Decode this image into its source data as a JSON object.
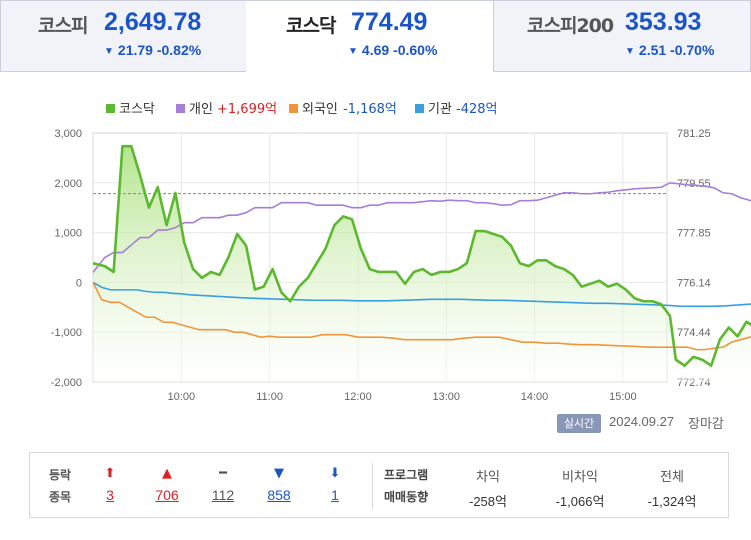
{
  "tabs": [
    {
      "name": "코스피",
      "value": "2,649.78",
      "change": "21.79 -0.82%",
      "direction": "down"
    },
    {
      "name": "코스닥",
      "value": "774.49",
      "change": "4.69 -0.60%",
      "direction": "down"
    },
    {
      "name": "코스피200",
      "value": "353.93",
      "change": "2.51 -0.70%",
      "direction": "down"
    }
  ],
  "legend": [
    {
      "label": "코스닥",
      "value": "",
      "color": "#5cb82e",
      "value_color": "#5cb82e"
    },
    {
      "label": "개인",
      "value": "+1,699억",
      "color": "#a77ed6",
      "value_color": "#e02020"
    },
    {
      "label": "외국인",
      "value": "-1,168억",
      "color": "#f0953a",
      "value_color": "#1b55c8"
    },
    {
      "label": "기관",
      "value": "-428억",
      "color": "#3a9ee0",
      "value_color": "#1b55c8"
    }
  ],
  "status": {
    "realtime": "실시간",
    "date": "2024.09.27",
    "closed": "장마감"
  },
  "stats": {
    "label1": "등락",
    "label2": "종목",
    "counts": [
      {
        "icon": "⬆",
        "value": "3",
        "kind": "limit-up"
      },
      {
        "icon": "▲",
        "value": "706",
        "kind": "up"
      },
      {
        "icon": "━",
        "value": "112",
        "kind": "flat"
      },
      {
        "icon": "▼",
        "value": "858",
        "kind": "down"
      },
      {
        "icon": "⬇",
        "value": "1",
        "kind": "limit-down"
      }
    ],
    "program_label1": "프로그램",
    "program_label2": "매매동향",
    "program": [
      {
        "header": "차익",
        "value": "-258억"
      },
      {
        "header": "비차익",
        "value": "-1,066억"
      },
      {
        "header": "전체",
        "value": "-1,324억"
      }
    ]
  },
  "chart_data": {
    "type": "line",
    "x_labels": [
      "10:00",
      "11:00",
      "12:00",
      "13:00",
      "14:00",
      "15:00"
    ],
    "x_range": [
      "09:00",
      "15:30"
    ],
    "y_left": {
      "ticks": [
        "3,000",
        "2,000",
        "1,000",
        "0",
        "-1,000",
        "-2,000"
      ],
      "range": [
        -2000,
        3000
      ]
    },
    "y_right": {
      "ticks": [
        "781.25",
        "779.55",
        "777.85",
        "776.14",
        "774.44",
        "772.74"
      ],
      "range": [
        772.74,
        781.25
      ]
    },
    "prev_close": 779.18,
    "grid": true,
    "series": [
      {
        "name": "코스닥",
        "axis": "right",
        "color": "#5cb82e",
        "area": true,
        "points": [
          [
            0,
            776.8
          ],
          [
            8,
            776.7
          ],
          [
            14,
            776.5
          ],
          [
            20,
            780.8
          ],
          [
            26,
            780.8
          ],
          [
            32,
            779.8
          ],
          [
            38,
            778.7
          ],
          [
            44,
            779.4
          ],
          [
            50,
            778.1
          ],
          [
            56,
            779.2
          ],
          [
            62,
            777.5
          ],
          [
            68,
            776.6
          ],
          [
            74,
            776.3
          ],
          [
            80,
            776.5
          ],
          [
            86,
            776.4
          ],
          [
            92,
            777.0
          ],
          [
            98,
            777.8
          ],
          [
            104,
            777.4
          ],
          [
            110,
            775.9
          ],
          [
            116,
            776.0
          ],
          [
            122,
            776.6
          ],
          [
            128,
            775.8
          ],
          [
            134,
            775.5
          ],
          [
            140,
            776.0
          ],
          [
            146,
            776.3
          ],
          [
            152,
            776.8
          ],
          [
            158,
            777.3
          ],
          [
            164,
            778.1
          ],
          [
            170,
            778.4
          ],
          [
            176,
            778.3
          ],
          [
            182,
            777.3
          ],
          [
            188,
            776.6
          ],
          [
            194,
            776.5
          ],
          [
            200,
            776.5
          ],
          [
            206,
            776.5
          ],
          [
            212,
            776.1
          ],
          [
            218,
            776.5
          ],
          [
            224,
            776.6
          ],
          [
            230,
            776.4
          ],
          [
            236,
            776.5
          ],
          [
            242,
            776.5
          ],
          [
            248,
            776.6
          ],
          [
            254,
            776.8
          ],
          [
            260,
            777.9
          ],
          [
            266,
            777.9
          ],
          [
            272,
            777.8
          ],
          [
            278,
            777.7
          ],
          [
            284,
            777.4
          ],
          [
            290,
            776.8
          ],
          [
            296,
            776.7
          ],
          [
            302,
            776.9
          ],
          [
            308,
            776.9
          ],
          [
            314,
            776.7
          ],
          [
            320,
            776.6
          ],
          [
            326,
            776.4
          ],
          [
            332,
            776.0
          ],
          [
            338,
            776.1
          ],
          [
            344,
            776.2
          ],
          [
            350,
            776.0
          ],
          [
            356,
            776.1
          ],
          [
            362,
            775.9
          ],
          [
            368,
            775.6
          ],
          [
            374,
            775.5
          ],
          [
            380,
            775.5
          ],
          [
            386,
            775.4
          ],
          [
            392,
            775.0
          ],
          [
            396,
            773.5
          ],
          [
            402,
            773.3
          ],
          [
            408,
            773.6
          ],
          [
            414,
            773.5
          ],
          [
            420,
            773.3
          ],
          [
            426,
            774.2
          ],
          [
            432,
            774.6
          ],
          [
            438,
            774.3
          ],
          [
            444,
            774.8
          ],
          [
            450,
            774.6
          ],
          [
            456,
            774.7
          ],
          [
            462,
            774.6
          ],
          [
            465,
            774.49
          ]
        ]
      },
      {
        "name": "개인",
        "axis": "left",
        "color": "#a77ed6",
        "points": [
          [
            0,
            200
          ],
          [
            8,
            500
          ],
          [
            14,
            600
          ],
          [
            20,
            600
          ],
          [
            26,
            750
          ],
          [
            32,
            900
          ],
          [
            38,
            900
          ],
          [
            44,
            1050
          ],
          [
            50,
            1050
          ],
          [
            56,
            1100
          ],
          [
            62,
            1200
          ],
          [
            68,
            1200
          ],
          [
            74,
            1300
          ],
          [
            80,
            1300
          ],
          [
            86,
            1300
          ],
          [
            92,
            1350
          ],
          [
            98,
            1350
          ],
          [
            104,
            1400
          ],
          [
            110,
            1500
          ],
          [
            116,
            1500
          ],
          [
            122,
            1500
          ],
          [
            128,
            1600
          ],
          [
            134,
            1600
          ],
          [
            140,
            1600
          ],
          [
            146,
            1600
          ],
          [
            152,
            1550
          ],
          [
            158,
            1550
          ],
          [
            164,
            1550
          ],
          [
            170,
            1550
          ],
          [
            176,
            1500
          ],
          [
            182,
            1500
          ],
          [
            188,
            1550
          ],
          [
            194,
            1550
          ],
          [
            200,
            1600
          ],
          [
            206,
            1600
          ],
          [
            212,
            1600
          ],
          [
            218,
            1600
          ],
          [
            224,
            1620
          ],
          [
            230,
            1640
          ],
          [
            236,
            1630
          ],
          [
            242,
            1650
          ],
          [
            248,
            1640
          ],
          [
            254,
            1640
          ],
          [
            260,
            1600
          ],
          [
            266,
            1600
          ],
          [
            272,
            1580
          ],
          [
            278,
            1550
          ],
          [
            284,
            1560
          ],
          [
            290,
            1640
          ],
          [
            296,
            1640
          ],
          [
            302,
            1650
          ],
          [
            308,
            1700
          ],
          [
            314,
            1750
          ],
          [
            320,
            1800
          ],
          [
            326,
            1800
          ],
          [
            332,
            1780
          ],
          [
            338,
            1780
          ],
          [
            344,
            1800
          ],
          [
            350,
            1810
          ],
          [
            356,
            1840
          ],
          [
            362,
            1860
          ],
          [
            368,
            1880
          ],
          [
            374,
            1890
          ],
          [
            380,
            1900
          ],
          [
            386,
            1910
          ],
          [
            392,
            2000
          ],
          [
            398,
            1980
          ],
          [
            404,
            1960
          ],
          [
            410,
            1950
          ],
          [
            416,
            1930
          ],
          [
            422,
            1900
          ],
          [
            428,
            1800
          ],
          [
            434,
            1780
          ],
          [
            440,
            1700
          ],
          [
            446,
            1650
          ],
          [
            452,
            1620
          ],
          [
            458,
            1630
          ],
          [
            465,
            1700
          ]
        ]
      },
      {
        "name": "외국인",
        "axis": "left",
        "color": "#f0953a",
        "points": [
          [
            0,
            0
          ],
          [
            6,
            -350
          ],
          [
            12,
            -400
          ],
          [
            18,
            -400
          ],
          [
            24,
            -500
          ],
          [
            30,
            -600
          ],
          [
            36,
            -700
          ],
          [
            42,
            -700
          ],
          [
            48,
            -800
          ],
          [
            54,
            -800
          ],
          [
            60,
            -850
          ],
          [
            66,
            -900
          ],
          [
            72,
            -950
          ],
          [
            78,
            -950
          ],
          [
            84,
            -950
          ],
          [
            90,
            -950
          ],
          [
            96,
            -1000
          ],
          [
            102,
            -1000
          ],
          [
            108,
            -1050
          ],
          [
            114,
            -1100
          ],
          [
            120,
            -1080
          ],
          [
            126,
            -1100
          ],
          [
            132,
            -1100
          ],
          [
            140,
            -1100
          ],
          [
            148,
            -1100
          ],
          [
            156,
            -1050
          ],
          [
            164,
            -1050
          ],
          [
            172,
            -1050
          ],
          [
            180,
            -1100
          ],
          [
            188,
            -1100
          ],
          [
            196,
            -1100
          ],
          [
            204,
            -1120
          ],
          [
            212,
            -1150
          ],
          [
            220,
            -1150
          ],
          [
            228,
            -1150
          ],
          [
            236,
            -1150
          ],
          [
            244,
            -1150
          ],
          [
            252,
            -1120
          ],
          [
            260,
            -1100
          ],
          [
            268,
            -1100
          ],
          [
            276,
            -1100
          ],
          [
            284,
            -1150
          ],
          [
            292,
            -1200
          ],
          [
            300,
            -1200
          ],
          [
            308,
            -1220
          ],
          [
            316,
            -1220
          ],
          [
            324,
            -1240
          ],
          [
            332,
            -1250
          ],
          [
            340,
            -1250
          ],
          [
            348,
            -1260
          ],
          [
            356,
            -1270
          ],
          [
            364,
            -1280
          ],
          [
            372,
            -1290
          ],
          [
            380,
            -1300
          ],
          [
            388,
            -1300
          ],
          [
            396,
            -1300
          ],
          [
            404,
            -1300
          ],
          [
            410,
            -1350
          ],
          [
            416,
            -1350
          ],
          [
            422,
            -1320
          ],
          [
            428,
            -1300
          ],
          [
            434,
            -1200
          ],
          [
            440,
            -1150
          ],
          [
            446,
            -1100
          ],
          [
            452,
            -1100
          ],
          [
            458,
            -1100
          ],
          [
            465,
            -1168
          ]
        ]
      },
      {
        "name": "기관",
        "axis": "left",
        "color": "#3a9ee0",
        "points": [
          [
            0,
            0
          ],
          [
            6,
            -100
          ],
          [
            12,
            -150
          ],
          [
            18,
            -150
          ],
          [
            24,
            -150
          ],
          [
            30,
            -150
          ],
          [
            36,
            -180
          ],
          [
            42,
            -200
          ],
          [
            48,
            -200
          ],
          [
            54,
            -220
          ],
          [
            60,
            -230
          ],
          [
            66,
            -250
          ],
          [
            72,
            -260
          ],
          [
            78,
            -270
          ],
          [
            84,
            -280
          ],
          [
            90,
            -290
          ],
          [
            96,
            -300
          ],
          [
            102,
            -310
          ],
          [
            110,
            -320
          ],
          [
            120,
            -330
          ],
          [
            130,
            -340
          ],
          [
            140,
            -350
          ],
          [
            150,
            -360
          ],
          [
            160,
            -360
          ],
          [
            170,
            -360
          ],
          [
            180,
            -370
          ],
          [
            190,
            -370
          ],
          [
            200,
            -370
          ],
          [
            210,
            -360
          ],
          [
            220,
            -350
          ],
          [
            230,
            -340
          ],
          [
            240,
            -340
          ],
          [
            250,
            -340
          ],
          [
            260,
            -350
          ],
          [
            270,
            -360
          ],
          [
            280,
            -360
          ],
          [
            290,
            -370
          ],
          [
            300,
            -380
          ],
          [
            310,
            -390
          ],
          [
            320,
            -400
          ],
          [
            330,
            -410
          ],
          [
            340,
            -420
          ],
          [
            350,
            -420
          ],
          [
            360,
            -430
          ],
          [
            370,
            -440
          ],
          [
            380,
            -450
          ],
          [
            390,
            -460
          ],
          [
            400,
            -480
          ],
          [
            410,
            -480
          ],
          [
            420,
            -480
          ],
          [
            430,
            -470
          ],
          [
            440,
            -450
          ],
          [
            450,
            -430
          ],
          [
            458,
            -420
          ],
          [
            465,
            -428
          ]
        ]
      }
    ]
  }
}
